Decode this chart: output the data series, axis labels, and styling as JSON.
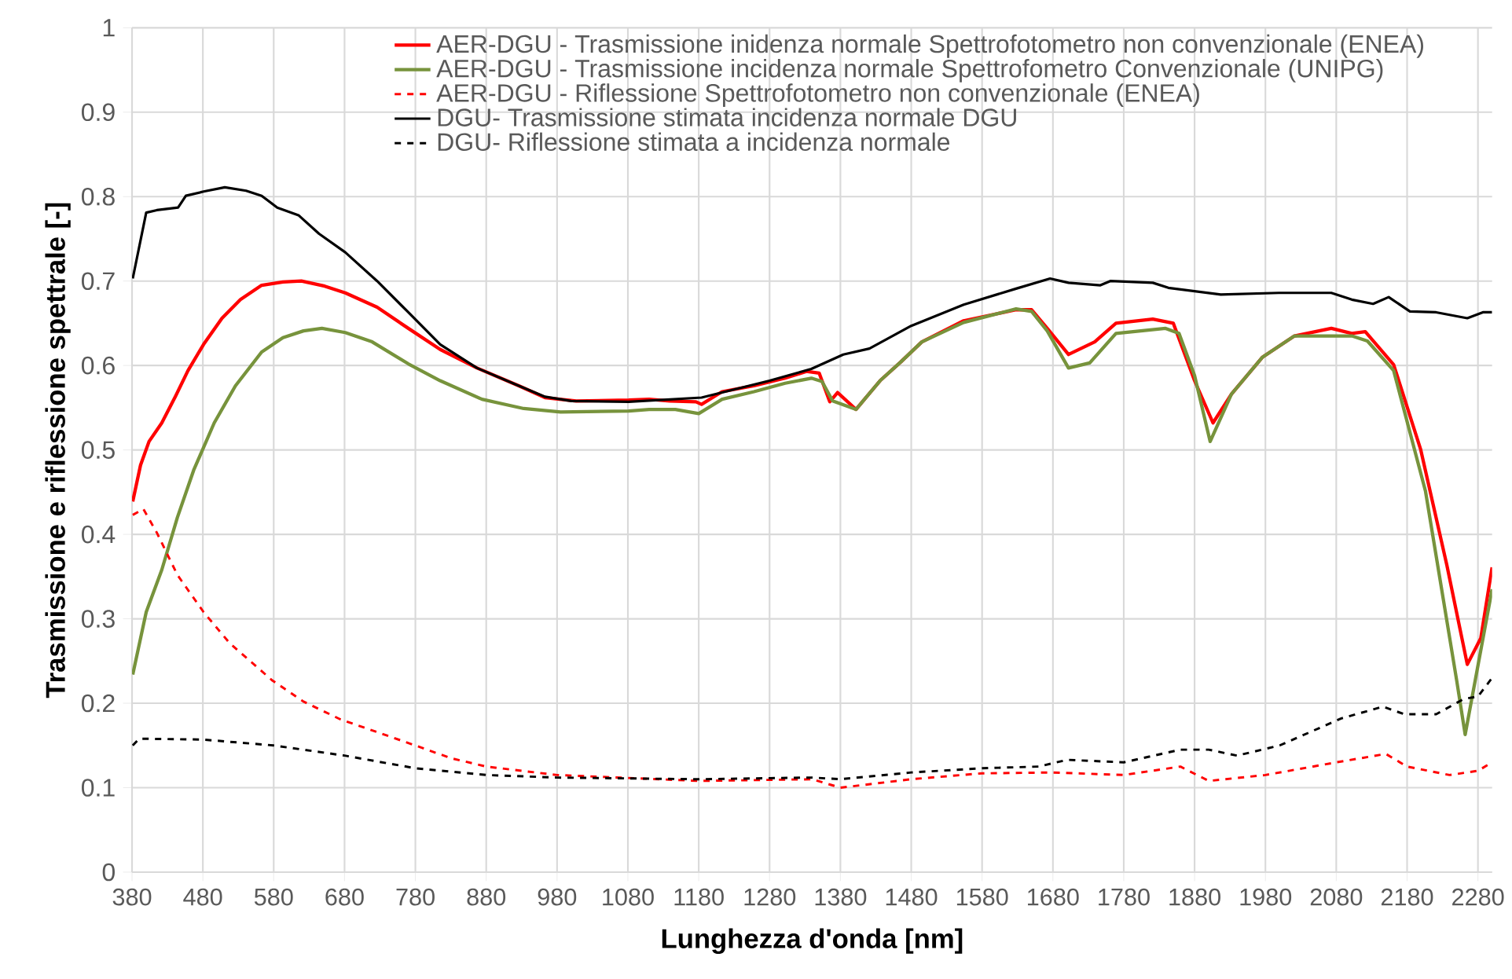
{
  "chart_data": {
    "type": "line",
    "xlabel": "Lunghezza d'onda [nm]",
    "ylabel": "Trasmissione e riflessione spettrale [-]",
    "xlim": [
      380,
      2300
    ],
    "ylim": [
      0,
      1
    ],
    "xticks": [
      380,
      480,
      580,
      680,
      780,
      880,
      980,
      1080,
      1180,
      1280,
      1380,
      1480,
      1580,
      1680,
      1780,
      1880,
      1980,
      2080,
      2180,
      2280
    ],
    "yticks": [
      0,
      0.1,
      0.2,
      0.3,
      0.4,
      0.5,
      0.6,
      0.7,
      0.8,
      0.9,
      1
    ],
    "grid": true,
    "legend": "top",
    "series": [
      {
        "name": "AER-DGU - Trasmissione inidenza normale Spettrofotometro non convenzionale (ENEA)",
        "color": "#ff0000",
        "line_style": "solid",
        "x": [
          381,
          392,
          404,
          422,
          441,
          459,
          481,
          507,
          533,
          563,
          593,
          619,
          652,
          681,
          726,
          770,
          815,
          867,
          926,
          963,
          1007,
          1081,
          1110,
          1139,
          1176,
          1184,
          1213,
          1258,
          1302,
          1332,
          1350,
          1365,
          1376,
          1402,
          1436,
          1465,
          1495,
          1554,
          1628,
          1650,
          1672,
          1702,
          1739,
          1769,
          1821,
          1850,
          1880,
          1906,
          1932,
          1976,
          2021,
          2073,
          2102,
          2121,
          2161,
          2199,
          2236,
          2265,
          2284,
          2300
        ],
        "values": [
          0.439,
          0.482,
          0.51,
          0.532,
          0.563,
          0.594,
          0.625,
          0.656,
          0.678,
          0.695,
          0.699,
          0.7,
          0.694,
          0.686,
          0.669,
          0.644,
          0.619,
          0.597,
          0.576,
          0.562,
          0.558,
          0.559,
          0.56,
          0.558,
          0.557,
          0.554,
          0.569,
          0.576,
          0.585,
          0.593,
          0.591,
          0.557,
          0.568,
          0.548,
          0.582,
          0.604,
          0.628,
          0.653,
          0.666,
          0.666,
          0.644,
          0.613,
          0.628,
          0.65,
          0.655,
          0.65,
          0.582,
          0.532,
          0.566,
          0.61,
          0.635,
          0.644,
          0.638,
          0.64,
          0.601,
          0.501,
          0.364,
          0.246,
          0.277,
          0.361
        ]
      },
      {
        "name": "AER-DGU - Trasmissione incidenza normale Spettrofometro Convenzionale (UNIPG)",
        "color": "#77933c",
        "line_style": "solid",
        "x": [
          381,
          400,
          422,
          444,
          467,
          496,
          526,
          563,
          593,
          622,
          648,
          681,
          719,
          770,
          815,
          874,
          933,
          985,
          1081,
          1110,
          1147,
          1180,
          1213,
          1258,
          1302,
          1339,
          1354,
          1369,
          1402,
          1436,
          1465,
          1495,
          1554,
          1628,
          1650,
          1672,
          1702,
          1732,
          1769,
          1839,
          1858,
          1880,
          1902,
          1932,
          1976,
          2021,
          2102,
          2124,
          2161,
          2206,
          2250,
          2262,
          2300
        ],
        "values": [
          0.234,
          0.308,
          0.358,
          0.42,
          0.476,
          0.532,
          0.576,
          0.616,
          0.633,
          0.641,
          0.644,
          0.639,
          0.628,
          0.602,
          0.582,
          0.56,
          0.549,
          0.545,
          0.546,
          0.548,
          0.548,
          0.543,
          0.56,
          0.569,
          0.579,
          0.585,
          0.581,
          0.558,
          0.548,
          0.582,
          0.604,
          0.628,
          0.651,
          0.667,
          0.664,
          0.641,
          0.597,
          0.603,
          0.638,
          0.644,
          0.638,
          0.588,
          0.51,
          0.566,
          0.61,
          0.635,
          0.635,
          0.629,
          0.594,
          0.451,
          0.227,
          0.163,
          0.335
        ]
      },
      {
        "name": "AER-DGU - Riflessione Spettrofotometro non convenzionale (ENEA)",
        "color": "#ff0000",
        "line_style": "dashed",
        "x": [
          381,
          396,
          415,
          444,
          481,
          518,
          578,
          622,
          674,
          780,
          830,
          880,
          980,
          1180,
          1340,
          1380,
          1480,
          1580,
          1680,
          1780,
          1860,
          1900,
          1980,
          2080,
          2150,
          2180,
          2240,
          2280,
          2300
        ],
        "values": [
          0.423,
          0.43,
          0.402,
          0.352,
          0.308,
          0.271,
          0.227,
          0.202,
          0.181,
          0.15,
          0.135,
          0.125,
          0.115,
          0.108,
          0.11,
          0.1,
          0.11,
          0.117,
          0.118,
          0.115,
          0.125,
          0.108,
          0.115,
          0.13,
          0.14,
          0.125,
          0.115,
          0.12,
          0.13
        ]
      },
      {
        "name": "DGU- Trasmissione stimata incidenza normale DGU",
        "color": "#000000",
        "line_style": "solid",
        "x": [
          381,
          400,
          415,
          445,
          456,
          481,
          511,
          541,
          563,
          585,
          615,
          644,
          681,
          726,
          770,
          815,
          867,
          926,
          963,
          1000,
          1081,
          1184,
          1280,
          1339,
          1384,
          1421,
          1480,
          1554,
          1628,
          1676,
          1702,
          1747,
          1761,
          1821,
          1843,
          1917,
          1999,
          2073,
          2102,
          2132,
          2154,
          2184,
          2221,
          2265,
          2287,
          2300
        ],
        "values": [
          0.703,
          0.781,
          0.784,
          0.787,
          0.801,
          0.806,
          0.811,
          0.807,
          0.801,
          0.787,
          0.778,
          0.756,
          0.734,
          0.7,
          0.663,
          0.625,
          0.597,
          0.576,
          0.563,
          0.558,
          0.557,
          0.562,
          0.582,
          0.596,
          0.613,
          0.62,
          0.647,
          0.672,
          0.691,
          0.703,
          0.698,
          0.695,
          0.7,
          0.698,
          0.692,
          0.684,
          0.686,
          0.686,
          0.678,
          0.673,
          0.681,
          0.664,
          0.663,
          0.656,
          0.663,
          0.663
        ]
      },
      {
        "name": "DGU- Riflessione stimata a incidenza normale",
        "color": "#000000",
        "line_style": "dashed",
        "x": [
          381,
          390,
          480,
          580,
          680,
          780,
          880,
          980,
          1180,
          1340,
          1380,
          1480,
          1580,
          1660,
          1700,
          1780,
          1860,
          1900,
          1940,
          2000,
          2087,
          2146,
          2176,
          2221,
          2260,
          2280,
          2300
        ],
        "values": [
          0.15,
          0.158,
          0.157,
          0.15,
          0.138,
          0.123,
          0.115,
          0.112,
          0.11,
          0.112,
          0.11,
          0.118,
          0.123,
          0.125,
          0.133,
          0.13,
          0.145,
          0.145,
          0.138,
          0.15,
          0.182,
          0.196,
          0.187,
          0.187,
          0.205,
          0.208,
          0.23
        ]
      }
    ]
  }
}
